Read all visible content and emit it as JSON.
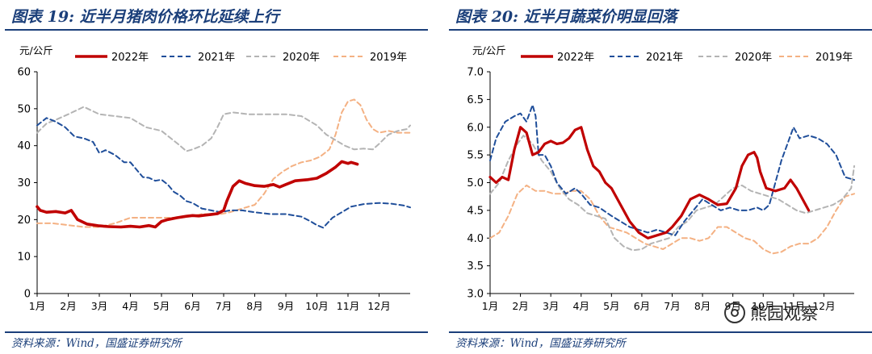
{
  "chart_data": [
    {
      "type": "line",
      "title": "图表 19:  近半月猪肉价格环比延续上行",
      "ylabel": "元/公斤",
      "xlabel": "",
      "ylim": [
        0,
        60
      ],
      "yticks": [
        0,
        10,
        20,
        30,
        40,
        50,
        60
      ],
      "categories": [
        "1月",
        "2月",
        "3月",
        "4月",
        "5月",
        "6月",
        "7月",
        "8月",
        "9月",
        "10月",
        "11月",
        "12月"
      ],
      "xlim": [
        1,
        13
      ],
      "legend_position": "top",
      "source": "资料来源：Wind，国盛证券研究所",
      "series": [
        {
          "name": "2022年",
          "color": "#c00000",
          "dash": "solid",
          "width": 3.6,
          "x": [
            1,
            1.1,
            1.3,
            1.6,
            1.9,
            2.1,
            2.3,
            2.6,
            3,
            3.3,
            3.7,
            4,
            4.3,
            4.6,
            4.8,
            5,
            5.2,
            5.5,
            5.8,
            6,
            6.2,
            6.4,
            6.6,
            6.8,
            7,
            7.1,
            7.3,
            7.5,
            7.7,
            8,
            8.3,
            8.6,
            8.8,
            9,
            9.3,
            9.7,
            10,
            10.3,
            10.6,
            10.8,
            11,
            11.1,
            11.3
          ],
          "y": [
            23.5,
            22.5,
            22,
            22.2,
            21.8,
            22.5,
            20,
            18.8,
            18.3,
            18.1,
            18,
            18.2,
            18,
            18.4,
            18,
            19.5,
            20,
            20.5,
            20.9,
            21.1,
            21,
            21.2,
            21.4,
            21.6,
            22.5,
            25,
            29,
            30.5,
            29.8,
            29.2,
            29,
            29.5,
            28.8,
            29.5,
            30.5,
            30.8,
            31.2,
            32.5,
            34.2,
            35.7,
            35.2,
            35.5,
            35
          ]
        },
        {
          "name": "2021年",
          "color": "#1f4e9a",
          "dash": "6 4",
          "width": 2,
          "x": [
            1,
            1.3,
            1.6,
            1.9,
            2.2,
            2.5,
            2.8,
            3,
            3.2,
            3.5,
            3.8,
            4,
            4.2,
            4.4,
            4.6,
            4.8,
            5,
            5.2,
            5.4,
            5.6,
            5.8,
            6,
            6.3,
            6.6,
            6.9,
            7.2,
            7.6,
            8,
            8.5,
            9,
            9.5,
            9.8,
            10,
            10.2,
            10.5,
            10.8,
            11.1,
            11.5,
            12,
            12.4,
            12.8,
            13
          ],
          "y": [
            45.5,
            47.5,
            46.5,
            45,
            42.5,
            42,
            41,
            38,
            38.8,
            37.5,
            35.5,
            35.5,
            33.5,
            31.5,
            31.3,
            30.5,
            30.8,
            29.5,
            27.5,
            26.5,
            25,
            24.5,
            23,
            22.5,
            22,
            22.5,
            22.5,
            22,
            21.5,
            21.5,
            20.8,
            19.5,
            18.5,
            17.8,
            20.5,
            22,
            23.5,
            24.2,
            24.5,
            24.3,
            23.8,
            23.3
          ]
        },
        {
          "name": "2020年",
          "color": "#b4b4b4",
          "dash": "6 4",
          "width": 2,
          "x": [
            1,
            1.3,
            1.6,
            2,
            2.5,
            3,
            3.5,
            4,
            4.5,
            5,
            5.3,
            5.6,
            5.8,
            6,
            6.3,
            6.6,
            6.8,
            7,
            7.3,
            7.5,
            7.8,
            8,
            8.5,
            9,
            9.5,
            10,
            10.3,
            10.6,
            10.9,
            11.2,
            11.5,
            11.8,
            12,
            12.3,
            12.6,
            12.9,
            13
          ],
          "y": [
            43.5,
            46,
            47,
            48.5,
            50.5,
            48.5,
            48,
            47.5,
            45,
            44,
            42,
            40,
            38.5,
            39,
            40,
            42,
            45,
            48.5,
            49,
            48.8,
            48.5,
            48.5,
            48.5,
            48.5,
            48,
            45.5,
            43,
            41.5,
            40,
            39,
            39.2,
            39,
            40.5,
            43,
            44,
            44.5,
            45.5
          ]
        },
        {
          "name": "2019年",
          "color": "#f4b183",
          "dash": "6 4",
          "width": 2,
          "x": [
            1,
            1.5,
            2,
            2.5,
            3,
            3.5,
            4,
            4.5,
            5,
            5.5,
            6,
            6.3,
            6.6,
            6.9,
            7.2,
            7.6,
            8,
            8.3,
            8.6,
            8.9,
            9.2,
            9.5,
            9.8,
            10.1,
            10.4,
            10.6,
            10.8,
            11,
            11.2,
            11.4,
            11.6,
            11.8,
            12,
            12.3,
            12.6,
            13
          ],
          "y": [
            19,
            19,
            18.5,
            18,
            18,
            19,
            20.5,
            20.5,
            20.5,
            20.5,
            21,
            21.5,
            21.5,
            21.5,
            22,
            23,
            24,
            27,
            31,
            33,
            34.5,
            35.5,
            36,
            37,
            39,
            43,
            49,
            52,
            52.5,
            51,
            47,
            44.5,
            43.5,
            44,
            43.5,
            43.5
          ]
        }
      ]
    },
    {
      "type": "line",
      "title": "图表 20:  近半月蔬菜价明显回落",
      "ylabel": "元/公斤",
      "xlabel": "",
      "ylim": [
        3.0,
        7.0
      ],
      "yticks": [
        "3.0",
        "3.5",
        "4.0",
        "4.5",
        "5.0",
        "5.5",
        "6.0",
        "6.5",
        "7.0"
      ],
      "categories": [
        "1月",
        "2月",
        "3月",
        "4月",
        "5月",
        "6月",
        "7月",
        "8月",
        "9月",
        "10月",
        "11月",
        "12月"
      ],
      "xlim": [
        1,
        13
      ],
      "legend_position": "top",
      "source": "资料来源：Wind，国盛证券研究所",
      "watermark": "熊园观察",
      "series": [
        {
          "name": "2022年",
          "color": "#c00000",
          "dash": "solid",
          "width": 3.2,
          "x": [
            1,
            1.2,
            1.4,
            1.6,
            1.8,
            2,
            2.2,
            2.4,
            2.6,
            2.8,
            3,
            3.2,
            3.4,
            3.6,
            3.8,
            4,
            4.2,
            4.4,
            4.6,
            4.8,
            5,
            5.3,
            5.6,
            5.9,
            6.2,
            6.5,
            6.8,
            7,
            7.3,
            7.6,
            7.9,
            8.2,
            8.5,
            8.8,
            9.1,
            9.3,
            9.5,
            9.7,
            9.8,
            9.9,
            10.1,
            10.4,
            10.7,
            10.9,
            11.1,
            11.3,
            11.5
          ],
          "y": [
            5.1,
            5,
            5.1,
            5.05,
            5.6,
            6.0,
            5.9,
            5.5,
            5.55,
            5.7,
            5.75,
            5.7,
            5.72,
            5.8,
            5.95,
            6.0,
            5.6,
            5.3,
            5.2,
            5.0,
            4.9,
            4.6,
            4.3,
            4.1,
            4.0,
            4.05,
            4.1,
            4.2,
            4.4,
            4.7,
            4.78,
            4.7,
            4.6,
            4.62,
            4.9,
            5.3,
            5.5,
            5.55,
            5.45,
            5.2,
            4.9,
            4.85,
            4.9,
            5.05,
            4.9,
            4.7,
            4.5
          ]
        },
        {
          "name": "2021年",
          "color": "#1f4e9a",
          "dash": "6 4",
          "width": 2,
          "x": [
            1,
            1.2,
            1.5,
            1.8,
            2,
            2.2,
            2.4,
            2.5,
            2.6,
            2.8,
            3,
            3.2,
            3.5,
            3.8,
            4,
            4.3,
            4.6,
            5,
            5.3,
            5.6,
            5.9,
            6.2,
            6.5,
            6.8,
            7.1,
            7.4,
            7.7,
            8,
            8.3,
            8.6,
            8.9,
            9.2,
            9.5,
            9.8,
            10,
            10.2,
            10.4,
            10.6,
            10.8,
            11,
            11.2,
            11.5,
            11.8,
            12.1,
            12.4,
            12.7,
            13
          ],
          "y": [
            5.4,
            5.8,
            6.1,
            6.2,
            6.25,
            6.1,
            6.4,
            6.2,
            5.5,
            5.5,
            5.3,
            5.0,
            4.8,
            4.9,
            4.8,
            4.6,
            4.55,
            4.4,
            4.3,
            4.2,
            4.15,
            4.1,
            4.15,
            4.1,
            4.05,
            4.3,
            4.5,
            4.7,
            4.6,
            4.5,
            4.55,
            4.5,
            4.5,
            4.55,
            4.5,
            4.6,
            5.0,
            5.4,
            5.7,
            6.0,
            5.8,
            5.85,
            5.8,
            5.7,
            5.5,
            5.1,
            5.05
          ]
        },
        {
          "name": "2020年",
          "color": "#b4b4b4",
          "dash": "6 4",
          "width": 2,
          "x": [
            1,
            1.3,
            1.6,
            1.9,
            2.1,
            2.4,
            2.7,
            3,
            3.3,
            3.6,
            3.9,
            4.2,
            4.5,
            4.8,
            5.1,
            5.4,
            5.7,
            6,
            6.3,
            6.6,
            6.9,
            7.2,
            7.5,
            7.8,
            8.1,
            8.4,
            8.7,
            9,
            9.3,
            9.6,
            9.9,
            10.2,
            10.5,
            10.8,
            11.1,
            11.4,
            11.7,
            12,
            12.3,
            12.6,
            12.9,
            13
          ],
          "y": [
            4.8,
            5.0,
            5.4,
            5.7,
            5.85,
            5.7,
            5.4,
            5.2,
            4.9,
            4.7,
            4.6,
            4.45,
            4.4,
            4.35,
            4.0,
            3.85,
            3.78,
            3.8,
            3.9,
            3.95,
            4.0,
            4.2,
            4.3,
            4.5,
            4.55,
            4.6,
            4.75,
            4.9,
            4.95,
            4.85,
            4.8,
            4.75,
            4.7,
            4.6,
            4.5,
            4.45,
            4.5,
            4.55,
            4.6,
            4.7,
            4.9,
            5.3
          ]
        },
        {
          "name": "2019年",
          "color": "#f4b183",
          "dash": "6 4",
          "width": 2,
          "x": [
            1,
            1.3,
            1.6,
            1.9,
            2.2,
            2.5,
            2.8,
            3.1,
            3.4,
            3.7,
            4,
            4.3,
            4.6,
            4.9,
            5.2,
            5.5,
            5.8,
            6.1,
            6.4,
            6.7,
            7,
            7.3,
            7.6,
            7.9,
            8.2,
            8.5,
            8.8,
            9.1,
            9.4,
            9.7,
            10,
            10.3,
            10.6,
            10.9,
            11.2,
            11.5,
            11.8,
            12.1,
            12.4,
            12.7,
            13
          ],
          "y": [
            4.0,
            4.1,
            4.4,
            4.8,
            4.95,
            4.85,
            4.85,
            4.8,
            4.8,
            4.85,
            4.85,
            4.7,
            4.4,
            4.2,
            4.15,
            4.1,
            4.0,
            3.9,
            3.85,
            3.8,
            3.9,
            4.0,
            4.0,
            3.95,
            4.0,
            4.2,
            4.2,
            4.1,
            4.0,
            3.95,
            3.8,
            3.72,
            3.75,
            3.85,
            3.9,
            3.9,
            4.0,
            4.2,
            4.5,
            4.75,
            4.8
          ]
        }
      ]
    }
  ]
}
